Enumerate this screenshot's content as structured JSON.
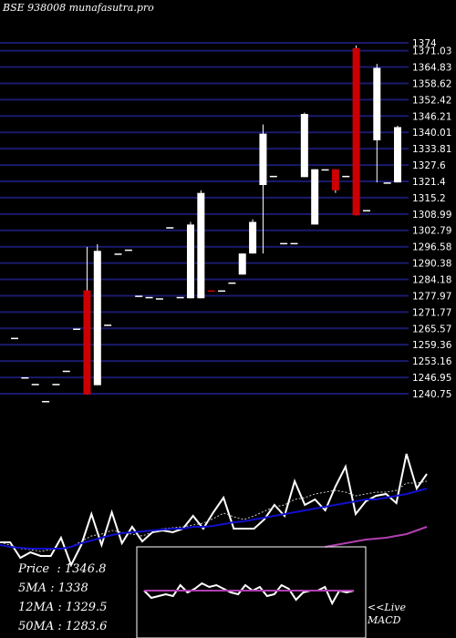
{
  "title": "BSE 938008 munafasutra.pro",
  "legend": {
    "price_label": "Price",
    "price_value": "1346.8",
    "ma5_label": "5MA",
    "ma5_value": "1338",
    "ma12_label": "12MA",
    "ma12_value": "1329.5",
    "ma50_label": "50MA",
    "ma50_value": "1283.6"
  },
  "macd": {
    "line1": "<<Live",
    "line2": "MACD"
  },
  "colors": {
    "background": "#000000",
    "grid": "#1a1a6e",
    "up_candle": "#ffffff",
    "down_candle": "#cc0000",
    "price_line": "#ffffff",
    "ma5": "#cccccc",
    "ma12": "#1010cc",
    "ma50": "#b040b0",
    "macd_signal": "#b040b0",
    "macd_line": "#ffffff"
  },
  "chart_data": [
    {
      "type": "candlestick",
      "title": "BSE 938008 munafasutra.pro",
      "y_ticks": [
        "1374",
        "1371.03",
        "1364.83",
        "1358.62",
        "1352.42",
        "1346.21",
        "1340.01",
        "1333.81",
        "1327.6",
        "1321.4",
        "1315.2",
        "1308.99",
        "1302.79",
        "1296.58",
        "1290.38",
        "1284.18",
        "1277.97",
        "1271.77",
        "1265.57",
        "1259.36",
        "1253.16",
        "1246.95",
        "1240.75"
      ],
      "ylim": [
        1240.75,
        1374
      ],
      "candles": [
        {
          "o": 1262.0,
          "h": 1262.0,
          "l": 1262.0,
          "c": 1262.0
        },
        {
          "o": 1247.0,
          "h": 1247.0,
          "l": 1247.0,
          "c": 1247.0
        },
        {
          "o": 1244.5,
          "h": 1244.5,
          "l": 1244.5,
          "c": 1244.5
        },
        {
          "o": 1238.0,
          "h": 1238.0,
          "l": 1238.0,
          "c": 1238.0
        },
        {
          "o": 1244.5,
          "h": 1244.5,
          "l": 1244.5,
          "c": 1244.5
        },
        {
          "o": 1249.5,
          "h": 1249.5,
          "l": 1249.5,
          "c": 1249.5
        },
        {
          "o": 1265.5,
          "h": 1265.5,
          "l": 1265.5,
          "c": 1265.5
        },
        {
          "o": 1280.0,
          "h": 1296.5,
          "l": 1240.5,
          "c": 1240.5
        },
        {
          "o": 1244.0,
          "h": 1297.5,
          "l": 1244.0,
          "c": 1295.0
        },
        {
          "o": 1267.0,
          "h": 1267.0,
          "l": 1267.0,
          "c": 1267.0
        },
        {
          "o": 1294.0,
          "h": 1294.0,
          "l": 1294.0,
          "c": 1294.0
        },
        {
          "o": 1295.5,
          "h": 1295.5,
          "l": 1295.5,
          "c": 1295.5
        },
        {
          "o": 1278.0,
          "h": 1278.0,
          "l": 1278.0,
          "c": 1278.0
        },
        {
          "o": 1277.5,
          "h": 1277.5,
          "l": 1277.5,
          "c": 1277.5
        },
        {
          "o": 1277.0,
          "h": 1277.0,
          "l": 1277.0,
          "c": 1277.0
        },
        {
          "o": 1304.0,
          "h": 1304.0,
          "l": 1304.0,
          "c": 1304.0
        },
        {
          "o": 1277.5,
          "h": 1277.5,
          "l": 1277.5,
          "c": 1277.5
        },
        {
          "o": 1277.0,
          "h": 1306.0,
          "l": 1277.0,
          "c": 1305.0
        },
        {
          "o": 1277.0,
          "h": 1318.0,
          "l": 1277.0,
          "c": 1317.0
        },
        {
          "o": 1280.0,
          "h": 1280.0,
          "l": 1279.5,
          "c": 1279.5
        },
        {
          "o": 1280.0,
          "h": 1280.0,
          "l": 1280.0,
          "c": 1280.0
        },
        {
          "o": 1283.0,
          "h": 1283.0,
          "l": 1283.0,
          "c": 1283.0
        },
        {
          "o": 1286.0,
          "h": 1294.0,
          "l": 1286.0,
          "c": 1294.0
        },
        {
          "o": 1294.0,
          "h": 1307.0,
          "l": 1294.0,
          "c": 1306.0
        },
        {
          "o": 1320.0,
          "h": 1343.0,
          "l": 1294.0,
          "c": 1339.5
        },
        {
          "o": 1323.5,
          "h": 1323.5,
          "l": 1323.5,
          "c": 1323.5
        },
        {
          "o": 1298.0,
          "h": 1298.0,
          "l": 1298.0,
          "c": 1298.0
        },
        {
          "o": 1298.0,
          "h": 1298.0,
          "l": 1298.0,
          "c": 1298.0
        },
        {
          "o": 1323.0,
          "h": 1347.5,
          "l": 1323.0,
          "c": 1347.0
        },
        {
          "o": 1305.0,
          "h": 1326.0,
          "l": 1305.0,
          "c": 1326.0
        },
        {
          "o": 1326.0,
          "h": 1326.0,
          "l": 1326.0,
          "c": 1326.0
        },
        {
          "o": 1326.0,
          "h": 1326.0,
          "l": 1317.0,
          "c": 1318.0
        },
        {
          "o": 1323.5,
          "h": 1323.5,
          "l": 1323.5,
          "c": 1323.5
        },
        {
          "o": 1372.0,
          "h": 1373.0,
          "l": 1308.5,
          "c": 1308.5
        },
        {
          "o": 1310.5,
          "h": 1310.5,
          "l": 1310.5,
          "c": 1310.5
        },
        {
          "o": 1337.0,
          "h": 1366.0,
          "l": 1321.0,
          "c": 1364.5
        },
        {
          "o": 1321.0,
          "h": 1321.0,
          "l": 1321.0,
          "c": 1321.0
        },
        {
          "o": 1321.0,
          "h": 1342.5,
          "l": 1321.0,
          "c": 1342.0
        }
      ]
    },
    {
      "type": "line",
      "series": [
        {
          "name": "Price",
          "values": [
            595,
            595,
            612,
            606,
            610,
            610,
            590,
            620,
            598,
            564,
            598,
            562,
            596,
            578,
            594,
            584,
            582,
            584,
            580,
            566,
            580,
            562,
            546,
            580,
            580,
            580,
            570,
            554,
            566,
            528,
            554,
            548,
            560,
            534,
            512,
            564,
            550,
            544,
            542,
            552,
            498,
            536,
            520
          ]
        },
        {
          "name": "5MA",
          "values": [
            595,
            598,
            602,
            603,
            605,
            603,
            602,
            600,
            594,
            588,
            586,
            582,
            584,
            586,
            588,
            584,
            580,
            579,
            578,
            576,
            574,
            569,
            563,
            567,
            570,
            566,
            561,
            556,
            554,
            548,
            546,
            542,
            540,
            538,
            540,
            544,
            542,
            540,
            540,
            538,
            530,
            530,
            528
          ]
        },
        {
          "name": "12MA",
          "values": [
            598,
            600,
            601,
            602,
            602,
            602,
            602,
            600,
            596,
            593,
            590,
            587,
            585,
            584,
            583,
            582,
            581,
            580,
            580,
            578,
            578,
            577,
            575,
            573,
            572,
            570,
            568,
            566,
            564,
            562,
            560,
            558,
            556,
            554,
            552,
            550,
            548,
            548,
            546,
            544,
            542,
            539,
            536
          ]
        },
        {
          "name": "50MA",
          "values": [
            612,
            612,
            612,
            612,
            612,
            612,
            612,
            612,
            612,
            612,
            612,
            612,
            612,
            612,
            612,
            612,
            612,
            612,
            612,
            612,
            612,
            612,
            610,
            610,
            610,
            608,
            608,
            606,
            605,
            604,
            603,
            601,
            600,
            598,
            596,
            594,
            592,
            591,
            590,
            588,
            586,
            582,
            578
          ]
        }
      ]
    },
    {
      "type": "line",
      "series": [
        {
          "name": "MACD",
          "values": [
            648,
            656,
            654,
            652,
            654,
            642,
            650,
            646,
            640,
            644,
            642,
            646,
            650,
            652,
            642,
            648,
            644,
            654,
            652,
            642,
            646,
            658,
            650,
            648,
            648,
            644,
            662,
            648,
            650,
            648
          ]
        },
        {
          "name": "Signal",
          "values": [
            648,
            648,
            648,
            648,
            648,
            648,
            648,
            648,
            648,
            648,
            648,
            648,
            648,
            648,
            648,
            648,
            648,
            648,
            648,
            648,
            648,
            648,
            648,
            648,
            648,
            648,
            648,
            648,
            648,
            648
          ]
        }
      ]
    }
  ]
}
